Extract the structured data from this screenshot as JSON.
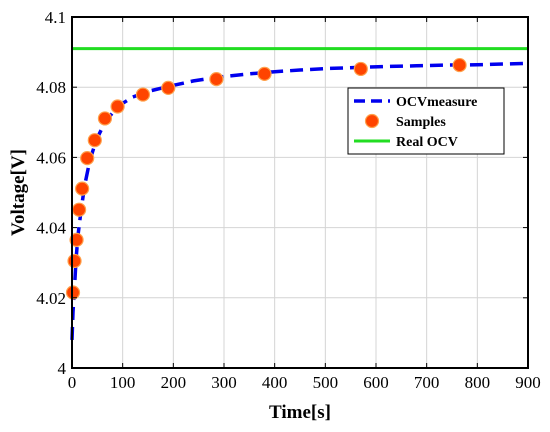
{
  "chart_data": {
    "type": "line",
    "title": "",
    "xlabel": "Time[s]",
    "ylabel": "Voltage[V]",
    "xlim": [
      0,
      900
    ],
    "ylim": [
      4.0,
      4.1
    ],
    "xticks": [
      0,
      100,
      200,
      300,
      400,
      500,
      600,
      700,
      800,
      900
    ],
    "yticks": [
      4.0,
      4.02,
      4.04,
      4.06,
      4.08,
      4.1
    ],
    "ytick_labels": [
      "4",
      "4.02",
      "4.04",
      "4.06",
      "4.08",
      "4.1"
    ],
    "grid": true,
    "legend_position": "top-right",
    "series": [
      {
        "name": "OCVmeasure",
        "style": "dashed-line",
        "color": "#0000ee",
        "x": [
          0,
          2,
          5,
          8,
          12,
          18,
          25,
          35,
          48,
          65,
          90,
          120,
          150,
          190,
          240,
          290,
          350,
          400,
          450,
          500,
          560,
          620,
          680,
          740,
          800,
          850,
          900
        ],
        "y": [
          4.008,
          4.016,
          4.023,
          4.031,
          4.038,
          4.045,
          4.052,
          4.059,
          4.065,
          4.07,
          4.0745,
          4.0772,
          4.0788,
          4.0802,
          4.0818,
          4.0829,
          4.0838,
          4.0844,
          4.0849,
          4.0853,
          4.0856,
          4.0859,
          4.0861,
          4.0863,
          4.0864,
          4.0866,
          4.0868
        ]
      },
      {
        "name": "Samples",
        "style": "markers",
        "color": "#ff4400",
        "x": [
          2,
          5,
          9,
          14,
          20,
          30,
          45,
          65,
          90,
          140,
          190,
          285,
          380,
          570,
          765
        ],
        "y": [
          4.0215,
          4.0305,
          4.0365,
          4.0451,
          4.0511,
          4.0598,
          4.0649,
          4.0711,
          4.0745,
          4.0779,
          4.0798,
          4.0823,
          4.0838,
          4.0852,
          4.0863
        ]
      },
      {
        "name": "Real OCV",
        "style": "solid-line",
        "color": "#22dd22",
        "x": [
          0,
          900
        ],
        "y": [
          4.091,
          4.091
        ]
      }
    ]
  }
}
